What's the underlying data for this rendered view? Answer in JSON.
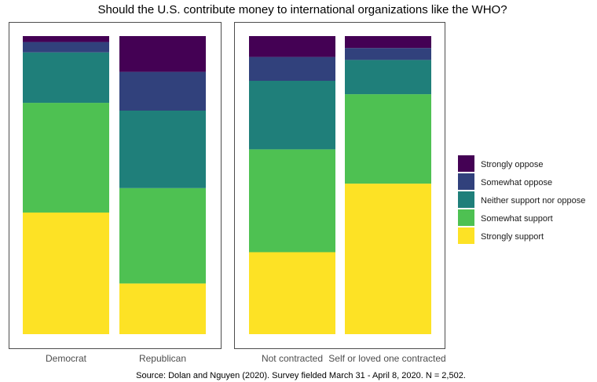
{
  "chart_data": {
    "type": "bar",
    "title": "Should the U.S. contribute money to international organizations like the WHO?",
    "caption": "Source: Dolan and Nguyen (2020). Survey fielded March 31 - April 8, 2020. N = 2,502.",
    "stacked": true,
    "normalized": true,
    "ylim": [
      0,
      1
    ],
    "legend_position": "right",
    "grid": false,
    "legend": [
      {
        "key": "strongly_oppose",
        "label": "Strongly oppose",
        "color": "#440154"
      },
      {
        "key": "somewhat_oppose",
        "label": "Somewhat oppose",
        "color": "#31417c"
      },
      {
        "key": "neither",
        "label": "Neither support nor oppose",
        "color": "#1f7f7a"
      },
      {
        "key": "somewhat_support",
        "label": "Somewhat support",
        "color": "#4ec152"
      },
      {
        "key": "strongly_support",
        "label": "Strongly support",
        "color": "#fde225"
      }
    ],
    "panels": [
      {
        "categories": [
          "Democrat",
          "Republican"
        ],
        "stack_order_bottom_to_top": [
          "strongly_support",
          "somewhat_support",
          "neither",
          "somewhat_oppose",
          "strongly_oppose"
        ],
        "bars": [
          {
            "category": "Democrat",
            "strongly_support": 0.41,
            "somewhat_support": 0.37,
            "neither": 0.17,
            "somewhat_oppose": 0.035,
            "strongly_oppose": 0.02
          },
          {
            "category": "Republican",
            "strongly_support": 0.17,
            "somewhat_support": 0.32,
            "neither": 0.26,
            "somewhat_oppose": 0.13,
            "strongly_oppose": 0.12
          }
        ]
      },
      {
        "categories": [
          "Not contracted",
          "Self or loved one contracted"
        ],
        "stack_order_bottom_to_top": [
          "strongly_support",
          "somewhat_support",
          "neither",
          "somewhat_oppose",
          "strongly_oppose"
        ],
        "bars": [
          {
            "category": "Not contracted",
            "strongly_support": 0.275,
            "somewhat_support": 0.345,
            "neither": 0.23,
            "somewhat_oppose": 0.08,
            "strongly_oppose": 0.07
          },
          {
            "category": "Self or loved one contracted",
            "strongly_support": 0.505,
            "somewhat_support": 0.3,
            "neither": 0.115,
            "somewhat_oppose": 0.04,
            "strongly_oppose": 0.04
          }
        ]
      }
    ]
  }
}
